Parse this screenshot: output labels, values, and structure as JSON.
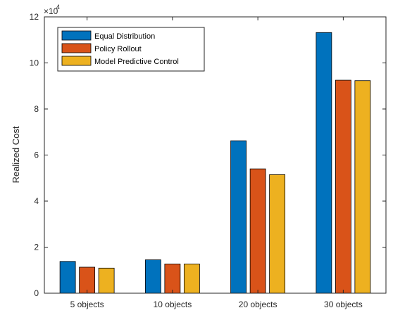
{
  "chart_data": {
    "type": "bar",
    "categories": [
      "5 objects",
      "10 objects",
      "20 objects",
      "30 objects"
    ],
    "series": [
      {
        "name": "Equal Distribution",
        "color": "#0072BD",
        "values": [
          13800,
          14500,
          66200,
          113200
        ]
      },
      {
        "name": "Policy Rollout",
        "color": "#D95319",
        "values": [
          11300,
          12700,
          54000,
          92500
        ]
      },
      {
        "name": "Model Predictive Control",
        "color": "#EDB120",
        "values": [
          10900,
          12700,
          51500,
          92300
        ]
      }
    ],
    "ylabel": "Realized Cost",
    "xlabel": "",
    "title": "",
    "ylim": [
      0,
      120000
    ],
    "yticks": [
      0,
      20000,
      40000,
      60000,
      80000,
      100000,
      120000
    ],
    "ytick_labels": [
      "0",
      "2",
      "4",
      "6",
      "8",
      "10",
      "12"
    ],
    "exponent_base": "×10",
    "exponent_power": "4",
    "legend_position": "top-left",
    "grid": false
  }
}
